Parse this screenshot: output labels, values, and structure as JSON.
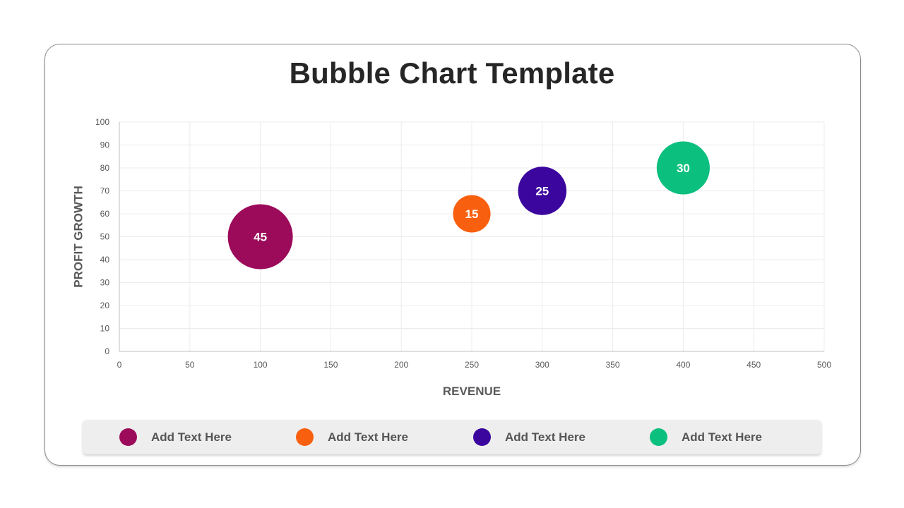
{
  "chart_data": {
    "type": "scatter",
    "title": "Bubble Chart Template",
    "xlabel": "REVENUE",
    "ylabel": "PROFIT GROWTH",
    "xlim": [
      0,
      500
    ],
    "ylim": [
      0,
      100
    ],
    "xticks": [
      0,
      50,
      100,
      150,
      200,
      250,
      300,
      350,
      400,
      450,
      500
    ],
    "yticks": [
      0,
      10,
      20,
      30,
      40,
      50,
      60,
      70,
      80,
      90,
      100
    ],
    "grid": true,
    "points": [
      {
        "x": 100,
        "y": 50,
        "size": 45,
        "label": "45",
        "color": "#9C0A5A"
      },
      {
        "x": 250,
        "y": 60,
        "size": 15,
        "label": "15",
        "color": "#F85F0E"
      },
      {
        "x": 300,
        "y": 70,
        "size": 25,
        "label": "25",
        "color": "#3B069E"
      },
      {
        "x": 400,
        "y": 80,
        "size": 30,
        "label": "30",
        "color": "#0BBF7F"
      }
    ]
  },
  "legend": [
    {
      "label": "Add Text Here",
      "color": "#9C0A5A"
    },
    {
      "label": "Add Text Here",
      "color": "#F85F0E"
    },
    {
      "label": "Add Text Here",
      "color": "#3B069E"
    },
    {
      "label": "Add Text Here",
      "color": "#0BBF7F"
    }
  ]
}
